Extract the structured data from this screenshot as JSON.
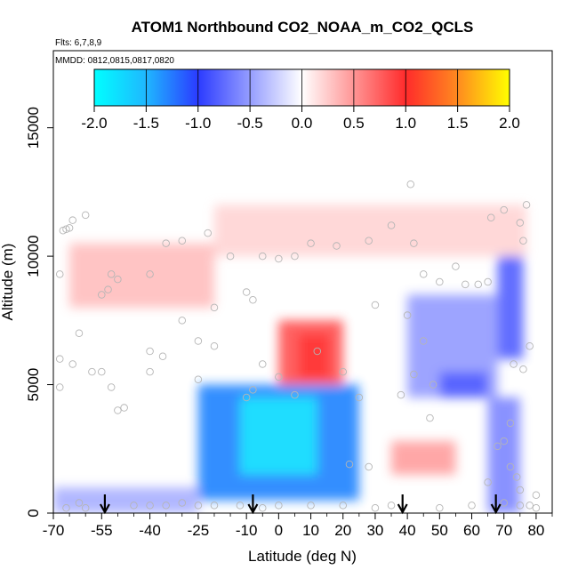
{
  "chart_data": {
    "type": "heatmap",
    "title": "ATOM1 Northbound CO2_NOAA_m_CO2_QCLS",
    "flights_label": "Flts: 6,7,8,9",
    "dates_label": "MMDD: 0812,0815,0817,0820",
    "xlabel": "Latitude (deg N)",
    "ylabel": "Altitude (m)",
    "xlim": [
      -70,
      85
    ],
    "ylim": [
      0,
      18000
    ],
    "x_ticks": [
      -70,
      -55,
      -40,
      -25,
      -10,
      0,
      10,
      20,
      30,
      40,
      50,
      60,
      70,
      80
    ],
    "x_minor_ticks": [
      -65,
      -60,
      -50,
      -45,
      -35,
      -30,
      -20,
      -15,
      -5,
      5,
      15,
      25,
      35,
      45,
      55,
      65,
      75,
      85
    ],
    "y_ticks": [
      0,
      5000,
      10000,
      15000
    ],
    "colorbar": {
      "range": [
        -2,
        2
      ],
      "ticks": [
        "-2.0",
        "-1.5",
        "-1.0",
        "-0.5",
        "0.0",
        "0.5",
        "1.0",
        "1.5",
        "2.0"
      ],
      "colors": [
        "#00ffff",
        "#1fb7ff",
        "#2b3bff",
        "#ffffff",
        "#ff2b2b",
        "#ff8a1f",
        "#ffff00"
      ]
    },
    "anomaly_regions": [
      {
        "name": "tropical-low-negative",
        "lat": [
          -25,
          25
        ],
        "alt": [
          500,
          5000
        ],
        "value": -1.3
      },
      {
        "name": "tropical-core-negative",
        "lat": [
          -12,
          12
        ],
        "alt": [
          1500,
          4500
        ],
        "value": -1.75
      },
      {
        "name": "tropical-mid-positive",
        "lat": [
          0,
          20
        ],
        "alt": [
          5000,
          7500
        ],
        "value": 0.8
      },
      {
        "name": "tropical-mid-core",
        "lat": [
          6,
          16
        ],
        "alt": [
          5200,
          7000
        ],
        "value": 1.0
      },
      {
        "name": "upper-trop-positive",
        "lat": [
          -20,
          77
        ],
        "alt": [
          10000,
          12000
        ],
        "value": 0.2
      },
      {
        "name": "southern-upper-positive",
        "lat": [
          -65,
          -20
        ],
        "alt": [
          8000,
          10500
        ],
        "value": 0.3
      },
      {
        "name": "northern-mid-negative",
        "lat": [
          40,
          68
        ],
        "alt": [
          4500,
          8500
        ],
        "value": -0.5
      },
      {
        "name": "northern-mid-core",
        "lat": [
          50,
          65
        ],
        "alt": [
          4500,
          5500
        ],
        "value": -0.85
      },
      {
        "name": "arctic-upper-negative",
        "lat": [
          68,
          76
        ],
        "alt": [
          6000,
          10000
        ],
        "value": -0.8
      },
      {
        "name": "northern-low-positive",
        "lat": [
          35,
          55
        ],
        "alt": [
          1500,
          2800
        ],
        "value": 0.45
      },
      {
        "name": "arctic-low-negative",
        "lat": [
          65,
          75
        ],
        "alt": [
          0,
          4500
        ],
        "value": -0.6
      },
      {
        "name": "southern-surface-negative",
        "lat": [
          -70,
          -25
        ],
        "alt": [
          0,
          1000
        ],
        "value": -0.4
      }
    ],
    "sample_points": [
      [
        -67,
        11000
      ],
      [
        -66,
        11050
      ],
      [
        -65,
        11100
      ],
      [
        -64,
        11400
      ],
      [
        -60,
        11600
      ],
      [
        -68,
        9300
      ],
      [
        -52,
        9300
      ],
      [
        -50,
        9100
      ],
      [
        -53,
        8700
      ],
      [
        -55,
        8500
      ],
      [
        -62,
        7000
      ],
      [
        -68,
        6000
      ],
      [
        -68,
        4900
      ],
      [
        -58,
        5500
      ],
      [
        -55,
        5500
      ],
      [
        -52,
        4900
      ],
      [
        -50,
        4000
      ],
      [
        -48,
        4100
      ],
      [
        -64,
        5800
      ],
      [
        -40,
        6300
      ],
      [
        -36,
        6100
      ],
      [
        -40,
        5500
      ],
      [
        -40,
        9300
      ],
      [
        -35,
        10500
      ],
      [
        -30,
        10600
      ],
      [
        -22,
        10900
      ],
      [
        -15,
        10000
      ],
      [
        -20,
        8000
      ],
      [
        -30,
        7500
      ],
      [
        -25,
        6700
      ],
      [
        -20,
        6500
      ],
      [
        -25,
        5200
      ],
      [
        -10,
        8600
      ],
      [
        -8,
        8300
      ],
      [
        -5,
        10000
      ],
      [
        0,
        9900
      ],
      [
        5,
        10000
      ],
      [
        10,
        10500
      ],
      [
        18,
        10400
      ],
      [
        28,
        10600
      ],
      [
        35,
        11200
      ],
      [
        41,
        12800
      ],
      [
        42,
        10500
      ],
      [
        45,
        9300
      ],
      [
        50,
        9000
      ],
      [
        55,
        9600
      ],
      [
        58,
        8900
      ],
      [
        62,
        8900
      ],
      [
        65,
        9000
      ],
      [
        66,
        11500
      ],
      [
        70,
        11800
      ],
      [
        76,
        10600
      ],
      [
        75,
        11300
      ],
      [
        77,
        12000
      ],
      [
        30,
        8100
      ],
      [
        40,
        7700
      ],
      [
        45,
        6700
      ],
      [
        48,
        5000
      ],
      [
        42,
        5400
      ],
      [
        38,
        4600
      ],
      [
        25,
        4500
      ],
      [
        20,
        5500
      ],
      [
        12,
        6300
      ],
      [
        0,
        5300
      ],
      [
        -5,
        5800
      ],
      [
        -10,
        4500
      ],
      [
        -8,
        4800
      ],
      [
        5,
        4600
      ],
      [
        22,
        1900
      ],
      [
        28,
        1800
      ],
      [
        47,
        3700
      ],
      [
        65,
        1200
      ],
      [
        68,
        2600
      ],
      [
        70,
        2800
      ],
      [
        72,
        1800
      ],
      [
        74,
        1400
      ],
      [
        75,
        900
      ],
      [
        80,
        700
      ],
      [
        78,
        6500
      ],
      [
        76,
        5600
      ],
      [
        73,
        5800
      ],
      [
        72,
        3500
      ],
      [
        -40,
        300
      ],
      [
        -35,
        300
      ],
      [
        -30,
        400
      ],
      [
        -25,
        300
      ],
      [
        -45,
        300
      ],
      [
        -60,
        200
      ],
      [
        -62,
        400
      ],
      [
        -66,
        200
      ],
      [
        -20,
        300
      ],
      [
        -12,
        300
      ],
      [
        -5,
        200
      ],
      [
        0,
        300
      ],
      [
        10,
        300
      ],
      [
        20,
        300
      ],
      [
        30,
        200
      ],
      [
        35,
        300
      ],
      [
        50,
        200
      ],
      [
        60,
        300
      ],
      [
        70,
        400
      ],
      [
        75,
        300
      ],
      [
        78,
        300
      ],
      [
        80,
        200
      ]
    ],
    "arrow_latitudes": [
      -54,
      -8,
      38.5,
      67.5
    ]
  }
}
